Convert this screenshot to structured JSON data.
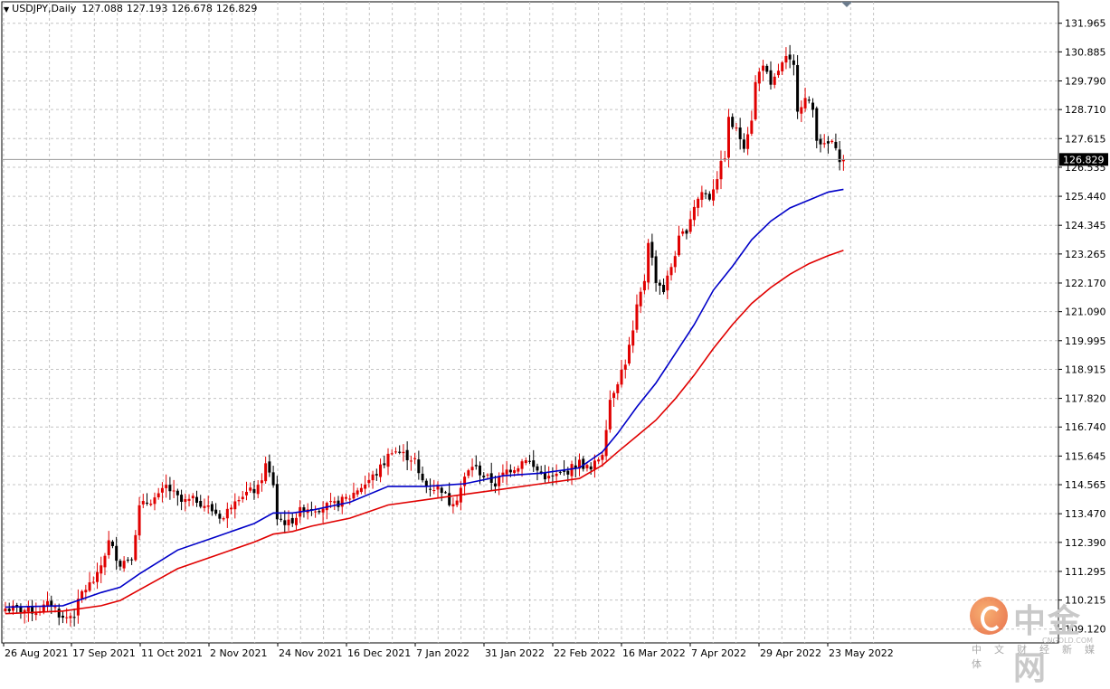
{
  "header": {
    "symbol": "USDJPY,Daily",
    "open": "127.088",
    "high": "127.193",
    "low": "126.678",
    "close": "126.829"
  },
  "watermark": {
    "brand": "中金网",
    "site": "CNGOLD.COM",
    "tagline": "中文财经新媒体"
  },
  "chart_data": {
    "type": "candlestick",
    "symbol": "USDJPY",
    "timeframe": "Daily",
    "current_price": 126.829,
    "y_ticks": [
      131.965,
      130.885,
      129.79,
      128.71,
      127.615,
      126.535,
      125.44,
      124.345,
      123.265,
      122.17,
      121.09,
      119.995,
      118.915,
      117.82,
      116.74,
      115.645,
      114.565,
      113.47,
      112.39,
      111.295,
      110.215,
      109.12
    ],
    "ylim": [
      108.6,
      132.5
    ],
    "x_labels": [
      "26 Aug 2021",
      "17 Sep 2021",
      "11 Oct 2021",
      "2 Nov 2021",
      "24 Nov 2021",
      "16 Dec 2021",
      "7 Jan 2022",
      "31 Jan 2022",
      "22 Feb 2022",
      "16 Mar 2022",
      "7 Apr 2022",
      "29 Apr 2022",
      "23 May 2022"
    ],
    "grid": true,
    "close_path": [
      [
        0,
        109.9
      ],
      [
        8,
        109.8
      ],
      [
        12,
        110.1
      ],
      [
        15,
        109.5
      ],
      [
        18,
        109.7
      ],
      [
        20,
        110.5
      ],
      [
        24,
        111.1
      ],
      [
        27,
        112.4
      ],
      [
        30,
        111.6
      ],
      [
        33,
        111.9
      ],
      [
        35,
        113.7
      ],
      [
        38,
        114.0
      ],
      [
        40,
        114.1
      ],
      [
        42,
        114.5
      ],
      [
        46,
        113.9
      ],
      [
        50,
        114.0
      ],
      [
        54,
        113.6
      ],
      [
        57,
        113.3
      ],
      [
        60,
        114.1
      ],
      [
        64,
        114.3
      ],
      [
        66,
        114.4
      ],
      [
        68,
        115.3
      ],
      [
        70,
        114.6
      ],
      [
        71,
        113.3
      ],
      [
        74,
        113.1
      ],
      [
        78,
        113.7
      ],
      [
        82,
        113.7
      ],
      [
        86,
        113.8
      ],
      [
        90,
        114.1
      ],
      [
        92,
        114.4
      ],
      [
        94,
        114.6
      ],
      [
        97,
        115.0
      ],
      [
        99,
        115.4
      ],
      [
        101,
        115.9
      ],
      [
        104,
        115.7
      ],
      [
        107,
        115.5
      ],
      [
        108,
        114.9
      ],
      [
        110,
        114.5
      ],
      [
        114,
        114.4
      ],
      [
        116,
        113.9
      ],
      [
        118,
        114.1
      ],
      [
        120,
        114.8
      ],
      [
        122,
        115.3
      ],
      [
        125,
        114.9
      ],
      [
        128,
        114.6
      ],
      [
        131,
        115.1
      ],
      [
        134,
        115.3
      ],
      [
        136,
        115.6
      ],
      [
        138,
        115.2
      ],
      [
        142,
        114.8
      ],
      [
        146,
        115.0
      ],
      [
        150,
        115.4
      ],
      [
        153,
        115.1
      ],
      [
        156,
        115.8
      ],
      [
        158,
        117.8
      ],
      [
        160,
        118.5
      ],
      [
        162,
        119.2
      ],
      [
        164,
        120.3
      ],
      [
        165,
        121.2
      ],
      [
        167,
        122.3
      ],
      [
        168,
        123.8
      ],
      [
        170,
        122.3
      ],
      [
        172,
        121.9
      ],
      [
        174,
        122.8
      ],
      [
        176,
        123.8
      ],
      [
        178,
        124.2
      ],
      [
        180,
        125.1
      ],
      [
        182,
        125.6
      ],
      [
        184,
        125.4
      ],
      [
        186,
        126.2
      ],
      [
        188,
        127.0
      ],
      [
        189,
        128.3
      ],
      [
        191,
        127.9
      ],
      [
        193,
        127.4
      ],
      [
        195,
        128.4
      ],
      [
        196,
        129.7
      ],
      [
        198,
        130.5
      ],
      [
        200,
        129.5
      ],
      [
        202,
        130.2
      ],
      [
        204,
        130.6
      ],
      [
        206,
        130.3
      ],
      [
        207,
        128.8
      ],
      [
        209,
        129.1
      ],
      [
        211,
        128.7
      ],
      [
        212,
        127.7
      ],
      [
        214,
        127.3
      ],
      [
        216,
        127.5
      ],
      [
        217,
        127.1
      ],
      [
        218,
        126.9
      ],
      [
        219,
        126.83
      ]
    ],
    "series": [
      {
        "name": "",
        "color": "#0000c8",
        "x": [
          0,
          15,
          25,
          30,
          35,
          45,
          55,
          65,
          70,
          75,
          80,
          90,
          100,
          110,
          120,
          130,
          140,
          150,
          156,
          160,
          165,
          170,
          175,
          180,
          185,
          190,
          195,
          200,
          205,
          210,
          215,
          219
        ],
        "values": [
          109.95,
          110.0,
          110.5,
          110.7,
          111.2,
          112.1,
          112.6,
          113.1,
          113.5,
          113.5,
          113.6,
          113.9,
          114.5,
          114.5,
          114.6,
          114.9,
          115.0,
          115.2,
          115.8,
          116.5,
          117.5,
          118.4,
          119.5,
          120.6,
          121.9,
          122.8,
          123.8,
          124.5,
          125.0,
          125.3,
          125.6,
          125.7
        ]
      },
      {
        "name": "",
        "color": "#e00000",
        "x": [
          0,
          15,
          25,
          30,
          35,
          45,
          55,
          65,
          70,
          75,
          80,
          90,
          100,
          110,
          120,
          130,
          140,
          150,
          156,
          160,
          165,
          170,
          175,
          180,
          185,
          190,
          195,
          200,
          205,
          210,
          215,
          219
        ],
        "values": [
          109.7,
          109.8,
          110.0,
          110.2,
          110.6,
          111.4,
          111.9,
          112.4,
          112.7,
          112.8,
          113.0,
          113.3,
          113.8,
          114.0,
          114.2,
          114.4,
          114.6,
          114.8,
          115.3,
          115.8,
          116.4,
          117.0,
          117.8,
          118.7,
          119.7,
          120.6,
          121.4,
          122.0,
          122.5,
          122.9,
          123.2,
          123.4
        ]
      }
    ]
  }
}
